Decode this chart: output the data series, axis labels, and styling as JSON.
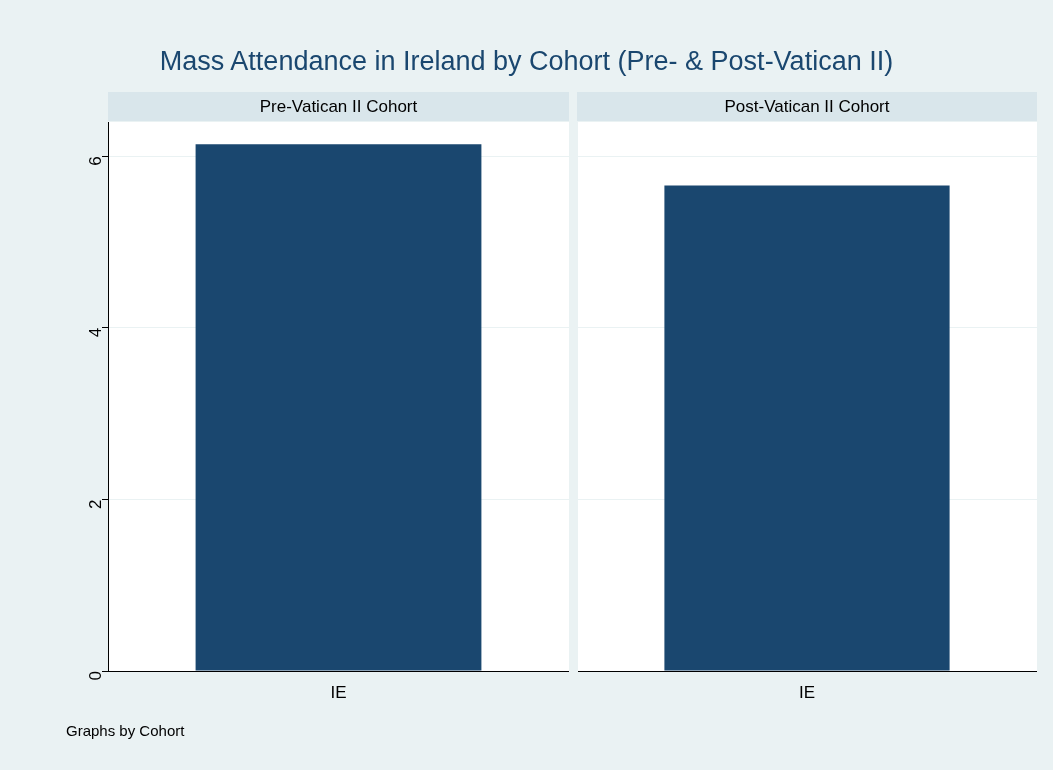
{
  "chart_data": [
    {
      "type": "bar",
      "title": "Mass Attendance in Ireland by Cohort (Pre- & Post-Vatican II)",
      "subtitle": "Pre-Vatican II Cohort",
      "categories": [
        "IE"
      ],
      "values": [
        6.14
      ],
      "color": "#1a476f",
      "ylim": [
        0,
        6.4
      ],
      "yticks": [
        0,
        2,
        4,
        6
      ],
      "grid": "y",
      "annotations": [
        "Graphs by Cohort"
      ]
    },
    {
      "type": "bar",
      "subtitle": "Post-Vatican II Cohort",
      "categories": [
        "IE"
      ],
      "values": [
        5.66
      ],
      "color": "#1a476f",
      "ylim": [
        0,
        6.4
      ],
      "yticks": [
        0,
        2,
        4,
        6
      ],
      "grid": "y",
      "tick_labels": "x"
    }
  ]
}
